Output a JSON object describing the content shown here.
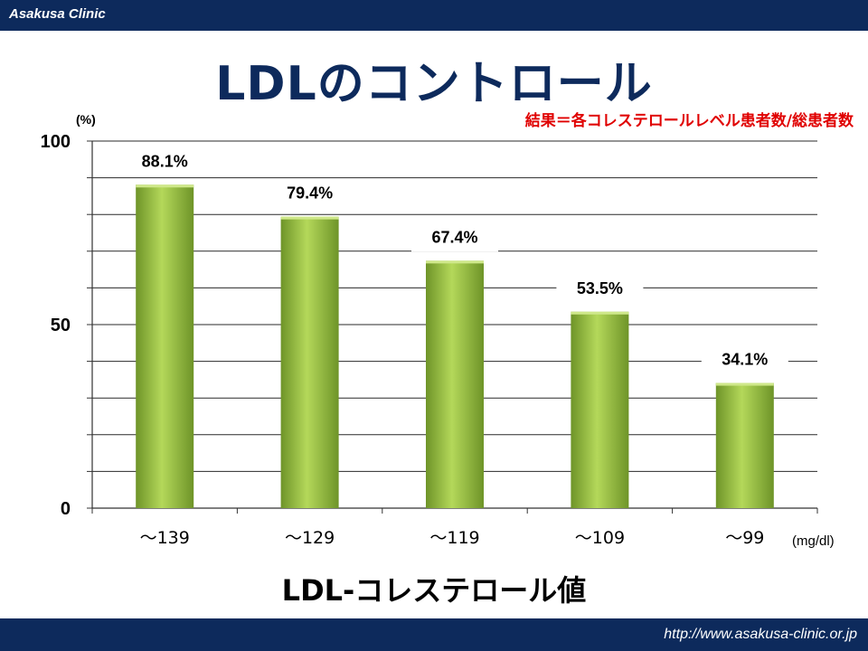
{
  "header": {
    "clinic_name": "Asakusa Clinic"
  },
  "footer": {
    "url": "http://www.asakusa-clinic.or.jp"
  },
  "colors": {
    "bar_dark": "#6e9428",
    "bar_light": "#b4d85a",
    "header_bg": "#0d2a5c",
    "subtitle": "#e00000"
  },
  "chart_data": {
    "type": "bar",
    "title": "LDLのコントロール",
    "subtitle": "結果＝各コレステロールレベル患者数/総患者数",
    "xlabel": "LDL-コレステロール値",
    "x_unit": "(mg/dl)",
    "y_unit": "(%)",
    "categories": [
      "～139",
      "～129",
      "～119",
      "～109",
      "～99"
    ],
    "values": [
      88.1,
      79.4,
      67.4,
      53.5,
      34.1
    ],
    "data_labels": [
      "88.1%",
      "79.4%",
      "67.4%",
      "53.5%",
      "34.1%"
    ],
    "ylim": [
      0,
      100
    ],
    "y_ticks": [
      0,
      50,
      100
    ],
    "grid": true,
    "legend": "none"
  }
}
